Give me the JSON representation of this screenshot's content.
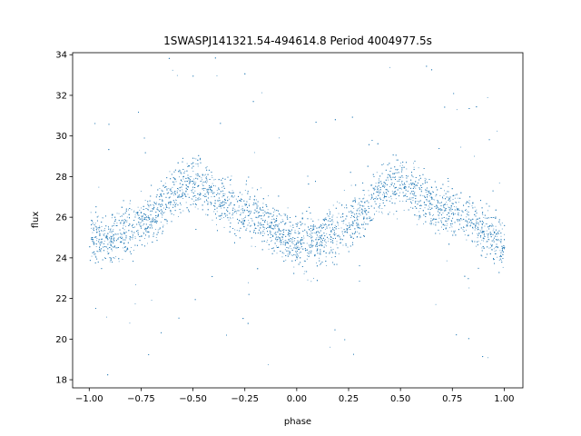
{
  "chart_data": {
    "type": "scatter",
    "title": "1SWASPJ141321.54-494614.8 Period 4004977.5s",
    "xlabel": "phase",
    "ylabel": "flux",
    "xlim": [
      -1.08,
      1.09
    ],
    "ylim": [
      17.6,
      34.1
    ],
    "x_ticks": [
      -1.0,
      -0.75,
      -0.5,
      -0.25,
      0.0,
      0.25,
      0.5,
      0.75,
      1.0
    ],
    "x_tick_labels": [
      "−1.00",
      "−0.75",
      "−0.50",
      "−0.25",
      "0.00",
      "0.25",
      "0.50",
      "0.75",
      "1.00"
    ],
    "y_ticks": [
      18,
      20,
      22,
      24,
      26,
      28,
      30,
      32,
      34
    ],
    "y_tick_labels": [
      "18",
      "20",
      "22",
      "24",
      "26",
      "28",
      "30",
      "32",
      "34"
    ],
    "grid": false,
    "point_color": "#1f77b4",
    "x_range": [
      -1.0,
      1.0
    ],
    "series": [
      {
        "values_description": "phase-folded flux, mirrored for phase -1..0 and 0..1",
        "x": [
          -1.0,
          -0.95,
          -0.9,
          -0.85,
          -0.8,
          -0.75,
          -0.7,
          -0.65,
          -0.6,
          -0.55,
          -0.5,
          -0.45,
          -0.4,
          -0.35,
          -0.3,
          -0.25,
          -0.2,
          -0.15,
          -0.1,
          -0.05,
          0.0,
          0.05,
          0.1,
          0.15,
          0.2,
          0.25,
          0.3,
          0.35,
          0.4,
          0.45,
          0.5,
          0.55,
          0.6,
          0.65,
          0.7,
          0.75,
          0.8,
          0.85,
          0.9,
          0.95,
          1.0
        ],
        "y": [
          25.2,
          24.8,
          24.9,
          25.2,
          25.4,
          25.7,
          26.0,
          26.6,
          27.2,
          27.6,
          27.7,
          27.6,
          27.0,
          26.7,
          26.4,
          26.3,
          26.2,
          25.8,
          25.4,
          25.0,
          24.6,
          24.8,
          24.9,
          25.2,
          25.4,
          25.7,
          26.0,
          26.6,
          27.2,
          27.6,
          27.7,
          27.6,
          27.0,
          26.7,
          26.4,
          26.3,
          26.2,
          25.8,
          25.4,
          25.0,
          24.6
        ]
      }
    ]
  }
}
